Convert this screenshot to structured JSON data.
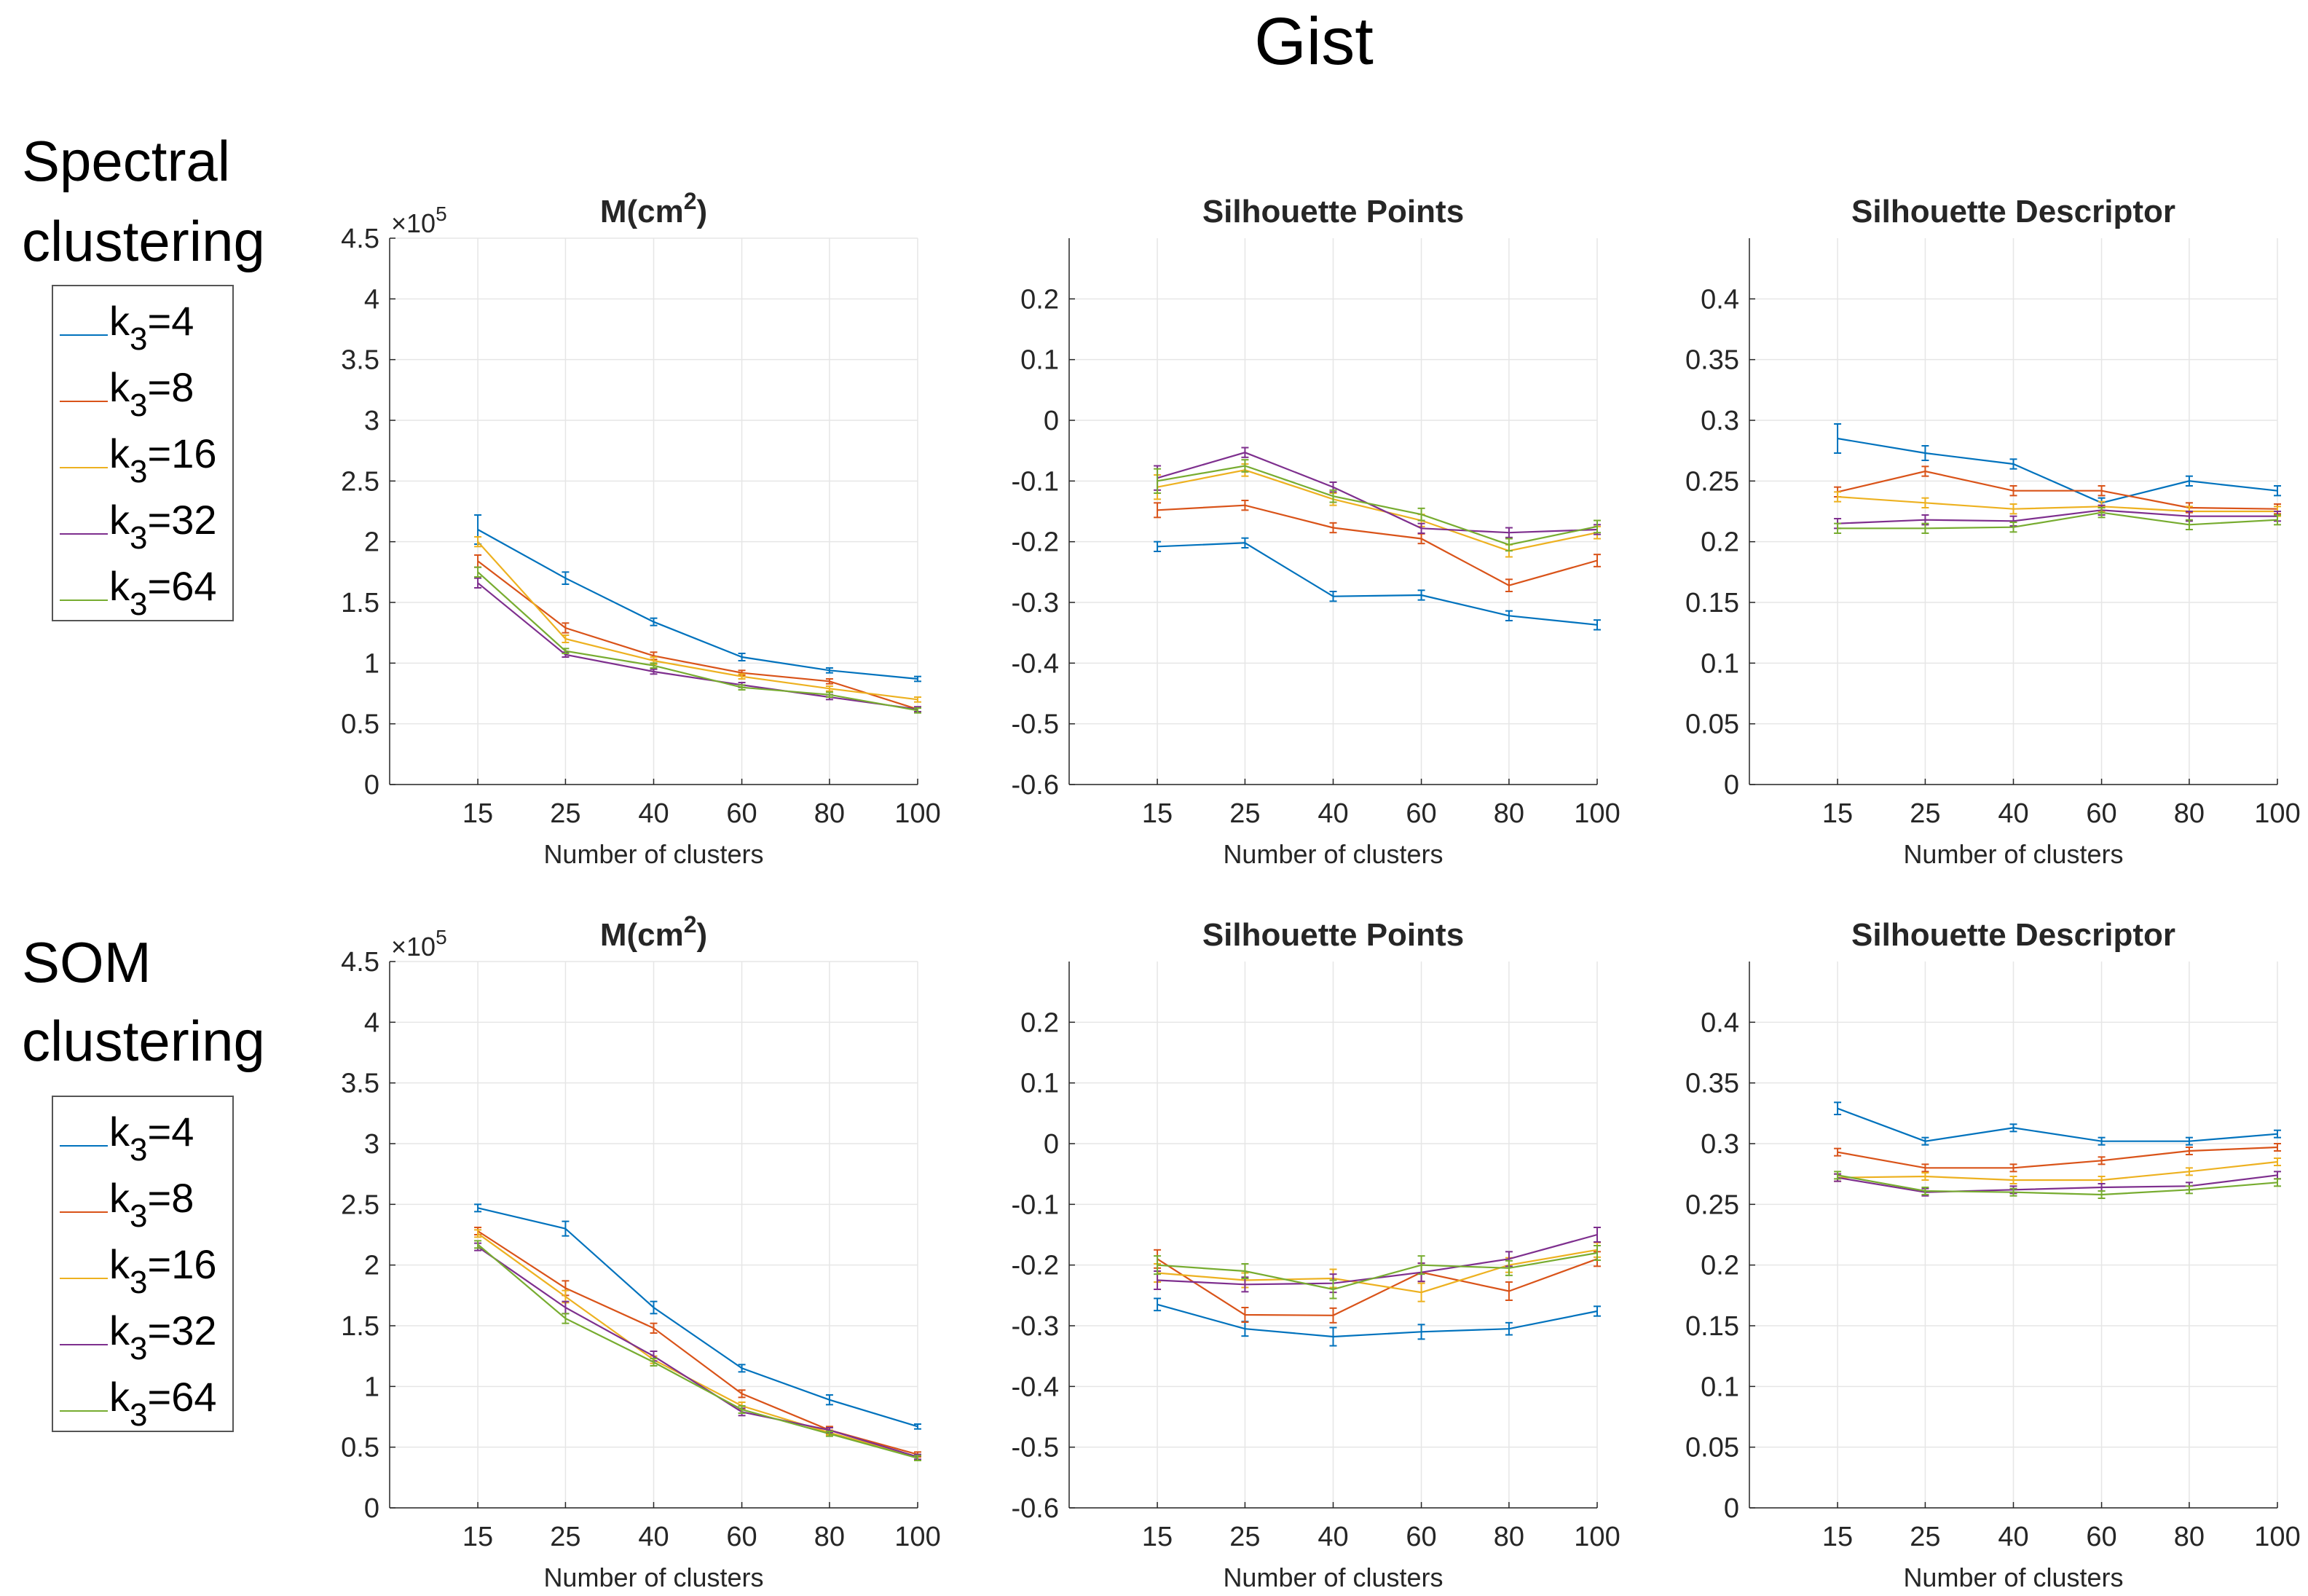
{
  "title": "Gist",
  "colors": {
    "k4": "#0072BD",
    "k8": "#D95319",
    "k16": "#EDB120",
    "k32": "#7E2F8E",
    "k64": "#77AC30"
  },
  "rows": [
    {
      "label_line1": "Spectral",
      "label_line2": "clustering"
    },
    {
      "label_line1": "SOM",
      "label_line2": "clustering"
    }
  ],
  "legend": [
    {
      "base": "k",
      "sub": "3",
      "suffix": "=4"
    },
    {
      "base": "k",
      "sub": "3",
      "suffix": "=8"
    },
    {
      "base": "k",
      "sub": "3",
      "suffix": "=16"
    },
    {
      "base": "k",
      "sub": "3",
      "suffix": "=32"
    },
    {
      "base": "k",
      "sub": "3",
      "suffix": "=64"
    }
  ],
  "chart_data": [
    {
      "type": "line",
      "row": 0,
      "col": 0,
      "title": "M(cm",
      "title_sup": "2",
      "title_end": ")",
      "xlabel": "Number of clusters",
      "categories": [
        "15",
        "25",
        "40",
        "60",
        "80",
        "100"
      ],
      "ylim": [
        0,
        4.5
      ],
      "yticks": [
        "0",
        "0.5",
        "1",
        "1.5",
        "2",
        "2.5",
        "3",
        "3.5",
        "4",
        "4.5"
      ],
      "exponent": {
        "base": "×10",
        "power": "5"
      },
      "series": [
        {
          "name": "k3=4",
          "values": [
            2.1,
            1.7,
            1.34,
            1.05,
            0.94,
            0.87
          ],
          "err": [
            0.12,
            0.05,
            0.03,
            0.03,
            0.02,
            0.02
          ]
        },
        {
          "name": "k3=8",
          "values": [
            1.84,
            1.29,
            1.06,
            0.92,
            0.85,
            0.62
          ],
          "err": [
            0.05,
            0.04,
            0.03,
            0.02,
            0.02,
            0.02
          ]
        },
        {
          "name": "k3=16",
          "values": [
            2.0,
            1.2,
            1.02,
            0.89,
            0.79,
            0.7
          ],
          "err": [
            0.04,
            0.03,
            0.03,
            0.02,
            0.02,
            0.02
          ]
        },
        {
          "name": "k3=32",
          "values": [
            1.66,
            1.07,
            0.93,
            0.82,
            0.72,
            0.62
          ],
          "err": [
            0.04,
            0.02,
            0.02,
            0.02,
            0.02,
            0.02
          ]
        },
        {
          "name": "k3=64",
          "values": [
            1.75,
            1.1,
            0.98,
            0.8,
            0.74,
            0.61
          ],
          "err": [
            0.04,
            0.02,
            0.02,
            0.02,
            0.02,
            0.02
          ]
        }
      ]
    },
    {
      "type": "line",
      "row": 0,
      "col": 1,
      "title": "Silhouette Points",
      "title_sup": "",
      "title_end": "",
      "xlabel": "Number of clusters",
      "categories": [
        "15",
        "25",
        "40",
        "60",
        "80",
        "100"
      ],
      "ylim": [
        -0.6,
        0.3
      ],
      "yticks": [
        "-0.6",
        "-0.5",
        "-0.4",
        "-0.3",
        "-0.2",
        "-0.1",
        "0",
        "0.1",
        "0.2"
      ],
      "series": [
        {
          "name": "k3=4",
          "values": [
            -0.208,
            -0.202,
            -0.29,
            -0.288,
            -0.322,
            -0.337
          ],
          "err": [
            0.008,
            0.008,
            0.008,
            0.008,
            0.008,
            0.008
          ]
        },
        {
          "name": "k3=8",
          "values": [
            -0.148,
            -0.14,
            -0.177,
            -0.195,
            -0.272,
            -0.231
          ],
          "err": [
            0.012,
            0.008,
            0.008,
            0.008,
            0.01,
            0.01
          ]
        },
        {
          "name": "k3=16",
          "values": [
            -0.11,
            -0.082,
            -0.13,
            -0.165,
            -0.215,
            -0.185
          ],
          "err": [
            0.02,
            0.01,
            0.01,
            0.01,
            0.01,
            0.01
          ]
        },
        {
          "name": "k3=32",
          "values": [
            -0.095,
            -0.053,
            -0.11,
            -0.178,
            -0.185,
            -0.18
          ],
          "err": [
            0.02,
            0.008,
            0.008,
            0.008,
            0.008,
            0.008
          ]
        },
        {
          "name": "k3=64",
          "values": [
            -0.1,
            -0.075,
            -0.125,
            -0.155,
            -0.205,
            -0.175
          ],
          "err": [
            0.02,
            0.01,
            0.01,
            0.01,
            0.01,
            0.01
          ]
        }
      ]
    },
    {
      "type": "line",
      "row": 0,
      "col": 2,
      "title": "Silhouette Descriptor",
      "title_sup": "",
      "title_end": "",
      "xlabel": "Number of clusters",
      "categories": [
        "15",
        "25",
        "40",
        "60",
        "80",
        "100"
      ],
      "ylim": [
        0,
        0.45
      ],
      "yticks": [
        "0",
        "0.05",
        "0.1",
        "0.15",
        "0.2",
        "0.25",
        "0.3",
        "0.35",
        "0.4"
      ],
      "series": [
        {
          "name": "k3=4",
          "values": [
            0.285,
            0.273,
            0.264,
            0.232,
            0.25,
            0.242
          ],
          "err": [
            0.012,
            0.006,
            0.004,
            0.004,
            0.004,
            0.004
          ]
        },
        {
          "name": "k3=8",
          "values": [
            0.241,
            0.258,
            0.242,
            0.242,
            0.228,
            0.227
          ],
          "err": [
            0.004,
            0.004,
            0.004,
            0.004,
            0.004,
            0.004
          ]
        },
        {
          "name": "k3=16",
          "values": [
            0.237,
            0.232,
            0.227,
            0.229,
            0.225,
            0.225
          ],
          "err": [
            0.004,
            0.004,
            0.004,
            0.004,
            0.004,
            0.004
          ]
        },
        {
          "name": "k3=32",
          "values": [
            0.215,
            0.218,
            0.217,
            0.226,
            0.221,
            0.221
          ],
          "err": [
            0.004,
            0.004,
            0.004,
            0.004,
            0.004,
            0.004
          ]
        },
        {
          "name": "k3=64",
          "values": [
            0.211,
            0.211,
            0.212,
            0.224,
            0.214,
            0.218
          ],
          "err": [
            0.004,
            0.004,
            0.004,
            0.004,
            0.004,
            0.004
          ]
        }
      ]
    },
    {
      "type": "line",
      "row": 1,
      "col": 0,
      "title": "M(cm",
      "title_sup": "2",
      "title_end": ")",
      "xlabel": "Number of clusters",
      "categories": [
        "15",
        "25",
        "40",
        "60",
        "80",
        "100"
      ],
      "ylim": [
        0,
        4.5
      ],
      "yticks": [
        "0",
        "0.5",
        "1",
        "1.5",
        "2",
        "2.5",
        "3",
        "3.5",
        "4",
        "4.5"
      ],
      "exponent": {
        "base": "×10",
        "power": "5"
      },
      "series": [
        {
          "name": "k3=4",
          "values": [
            2.47,
            2.3,
            1.65,
            1.15,
            0.89,
            0.67
          ],
          "err": [
            0.03,
            0.06,
            0.05,
            0.03,
            0.04,
            0.02
          ]
        },
        {
          "name": "k3=8",
          "values": [
            2.28,
            1.81,
            1.48,
            0.94,
            0.64,
            0.44
          ],
          "err": [
            0.03,
            0.06,
            0.04,
            0.03,
            0.03,
            0.02
          ]
        },
        {
          "name": "k3=16",
          "values": [
            2.26,
            1.74,
            1.22,
            0.84,
            0.62,
            0.42
          ],
          "err": [
            0.03,
            0.05,
            0.03,
            0.03,
            0.02,
            0.02
          ]
        },
        {
          "name": "k3=32",
          "values": [
            2.15,
            1.65,
            1.25,
            0.79,
            0.64,
            0.42
          ],
          "err": [
            0.03,
            0.05,
            0.04,
            0.03,
            0.02,
            0.02
          ]
        },
        {
          "name": "k3=64",
          "values": [
            2.17,
            1.56,
            1.2,
            0.81,
            0.61,
            0.41
          ],
          "err": [
            0.03,
            0.04,
            0.03,
            0.03,
            0.02,
            0.02
          ]
        }
      ]
    },
    {
      "type": "line",
      "row": 1,
      "col": 1,
      "title": "Silhouette Points",
      "title_sup": "",
      "title_end": "",
      "xlabel": "Number of clusters",
      "categories": [
        "15",
        "25",
        "40",
        "60",
        "80",
        "100"
      ],
      "ylim": [
        -0.6,
        0.3
      ],
      "yticks": [
        "-0.6",
        "-0.5",
        "-0.4",
        "-0.3",
        "-0.2",
        "-0.1",
        "0",
        "0.1",
        "0.2"
      ],
      "series": [
        {
          "name": "k3=4",
          "values": [
            -0.265,
            -0.305,
            -0.318,
            -0.31,
            -0.305,
            -0.276
          ],
          "err": [
            0.01,
            0.012,
            0.015,
            0.012,
            0.01,
            0.008
          ]
        },
        {
          "name": "k3=8",
          "values": [
            -0.19,
            -0.282,
            -0.283,
            -0.212,
            -0.243,
            -0.19
          ],
          "err": [
            0.015,
            0.012,
            0.012,
            0.015,
            0.015,
            0.012
          ]
        },
        {
          "name": "k3=16",
          "values": [
            -0.213,
            -0.225,
            -0.222,
            -0.245,
            -0.2,
            -0.175
          ],
          "err": [
            0.015,
            0.012,
            0.015,
            0.015,
            0.012,
            0.012
          ]
        },
        {
          "name": "k3=32",
          "values": [
            -0.225,
            -0.232,
            -0.23,
            -0.212,
            -0.19,
            -0.15
          ],
          "err": [
            0.015,
            0.012,
            0.015,
            0.015,
            0.012,
            0.012
          ]
        },
        {
          "name": "k3=64",
          "values": [
            -0.2,
            -0.21,
            -0.24,
            -0.2,
            -0.205,
            -0.18
          ],
          "err": [
            0.015,
            0.012,
            0.015,
            0.015,
            0.012,
            0.012
          ]
        }
      ]
    },
    {
      "type": "line",
      "row": 1,
      "col": 2,
      "title": "Silhouette Descriptor",
      "title_sup": "",
      "title_end": "",
      "xlabel": "Number of clusters",
      "categories": [
        "15",
        "25",
        "40",
        "60",
        "80",
        "100"
      ],
      "ylim": [
        0,
        0.45
      ],
      "yticks": [
        "0",
        "0.05",
        "0.1",
        "0.15",
        "0.2",
        "0.25",
        "0.3",
        "0.35",
        "0.4"
      ],
      "series": [
        {
          "name": "k3=4",
          "values": [
            0.329,
            0.302,
            0.313,
            0.302,
            0.302,
            0.308
          ],
          "err": [
            0.005,
            0.003,
            0.003,
            0.003,
            0.003,
            0.003
          ]
        },
        {
          "name": "k3=8",
          "values": [
            0.293,
            0.28,
            0.28,
            0.286,
            0.294,
            0.297
          ],
          "err": [
            0.003,
            0.003,
            0.003,
            0.003,
            0.003,
            0.003
          ]
        },
        {
          "name": "k3=16",
          "values": [
            0.272,
            0.273,
            0.27,
            0.27,
            0.277,
            0.285
          ],
          "err": [
            0.003,
            0.003,
            0.003,
            0.003,
            0.003,
            0.003
          ]
        },
        {
          "name": "k3=32",
          "values": [
            0.272,
            0.26,
            0.262,
            0.264,
            0.265,
            0.274
          ],
          "err": [
            0.003,
            0.003,
            0.003,
            0.003,
            0.003,
            0.003
          ]
        },
        {
          "name": "k3=64",
          "values": [
            0.274,
            0.261,
            0.26,
            0.258,
            0.262,
            0.268
          ],
          "err": [
            0.003,
            0.003,
            0.003,
            0.003,
            0.003,
            0.003
          ]
        }
      ]
    }
  ]
}
